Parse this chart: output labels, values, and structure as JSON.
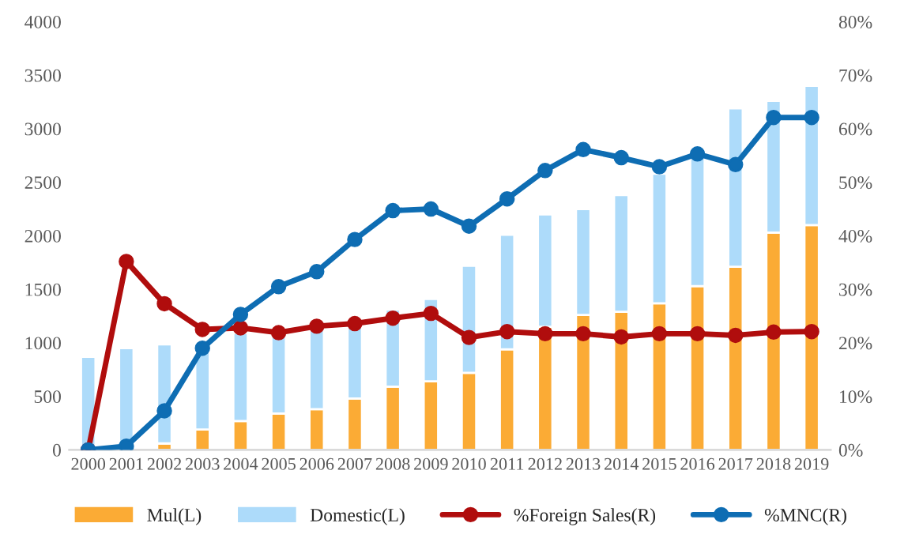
{
  "chart_data": {
    "type": "bar",
    "stacked": true,
    "legend": "bottom",
    "grid": false,
    "marker": "circle",
    "categories": [
      "2000",
      "2001",
      "2002",
      "2003",
      "2004",
      "2005",
      "2006",
      "2007",
      "2008",
      "2009",
      "2010",
      "2011",
      "2012",
      "2013",
      "2014",
      "2015",
      "2016",
      "2017",
      "2018",
      "2019"
    ],
    "series": [
      {
        "name": "Mul(L)",
        "color": "#fbab35",
        "values": [
          0,
          0,
          60,
          190,
          270,
          340,
          380,
          480,
          590,
          640,
          720,
          940,
          1150,
          1260,
          1290,
          1370,
          1530,
          1710,
          2030,
          2100
        ]
      },
      {
        "name": "Domestic(L)",
        "color": "#addbfa",
        "values": [
          870,
          950,
          925,
          810,
          820,
          740,
          770,
          700,
          720,
          770,
          1000,
          1070,
          1050,
          990,
          1090,
          1210,
          1220,
          1480,
          1230,
          1300
        ]
      },
      {
        "name": "%Foreign Sales(R)",
        "type": "line",
        "axis": "y2",
        "color": "#b00d0d",
        "values": [
          0,
          35.2,
          27.3,
          22.5,
          22.8,
          21.9,
          23.1,
          23.6,
          24.6,
          25.5,
          21,
          22.1,
          21.7,
          21.7,
          21.1,
          21.7,
          21.7,
          21.4,
          22,
          22.1
        ]
      },
      {
        "name": "%MNC(R)",
        "type": "line",
        "axis": "y2",
        "color": "#0e6db3",
        "values": [
          0,
          0.7,
          7.3,
          19,
          25.3,
          30.5,
          33.3,
          39.3,
          44.7,
          45,
          41.8,
          46.9,
          52.2,
          56.1,
          54.6,
          52.9,
          55.3,
          53.3,
          62.1,
          62.1
        ]
      }
    ],
    "ylim": [
      0,
      4000
    ],
    "yticks": [
      0,
      500,
      1000,
      1500,
      2000,
      2500,
      3000,
      3500,
      4000
    ],
    "y2lim": [
      0,
      80
    ],
    "y2ticks": [
      {
        "value": 0,
        "label": "0%"
      },
      {
        "value": 10,
        "label": "10%"
      },
      {
        "value": 20,
        "label": "20%"
      },
      {
        "value": 30,
        "label": "30%"
      },
      {
        "value": 40,
        "label": "40%"
      },
      {
        "value": 50,
        "label": "50%"
      },
      {
        "value": 60,
        "label": "60%"
      },
      {
        "value": 70,
        "label": "70%"
      },
      {
        "value": 80,
        "label": "80%"
      }
    ]
  }
}
